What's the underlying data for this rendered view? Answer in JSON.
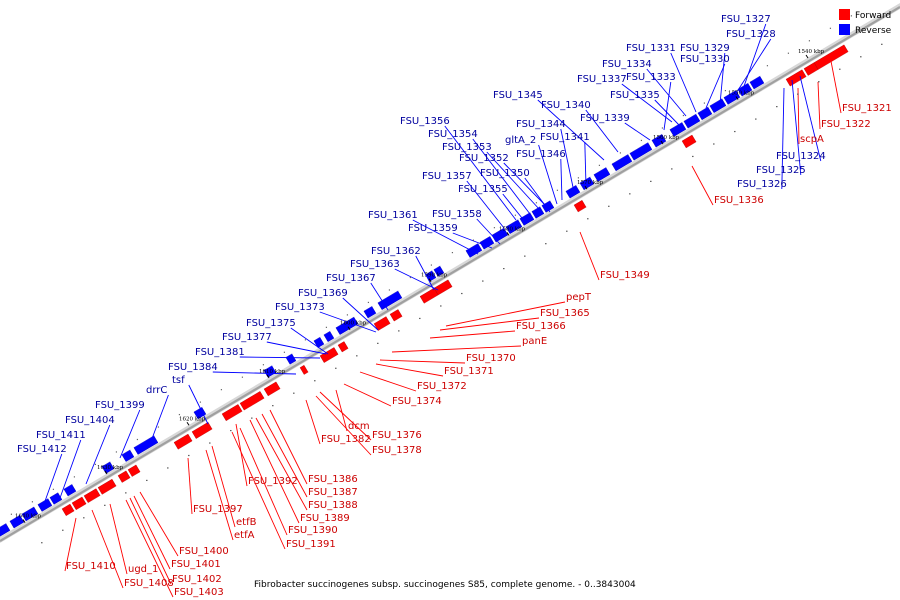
{
  "caption": "Fibrobacter succinogenes subsp. succinogenes S85, complete genome. - 0..3843004",
  "legend": [
    {
      "label": "Forward",
      "color": "#ff0000"
    },
    {
      "label": "Reverse",
      "color": "#0000ff"
    }
  ],
  "colors": {
    "forward": "#ff0000",
    "reverse": "#0000ff",
    "forward_label": "#cc0000",
    "reverse_label": "#00009e",
    "backbone": "#a0a0a0"
  },
  "ticks": [
    "1540 kbp",
    "1550 kbp",
    "1560 kbp",
    "1570 kbp",
    "1580 kbp",
    "1590 kbp",
    "1600 kbp",
    "1610 kbp",
    "1620 kbp",
    "1630 kbp",
    "1640 kbp"
  ],
  "reverse_genes": [
    "FSU_1327",
    "FSU_1328",
    "FSU_1329",
    "FSU_1331",
    "FSU_1330",
    "FSU_1334",
    "FSU_1337",
    "FSU_1333",
    "FSU_1335",
    "FSU_1345",
    "FSU_1340",
    "FSU_1339",
    "FSU_1344",
    "FSU_1341",
    "FSU_1356",
    "FSU_1354",
    "gltA_2",
    "FSU_1353",
    "FSU_1346",
    "FSU_1352",
    "FSU_1357",
    "FSU_1350",
    "FSU_1355",
    "FSU_1361",
    "FSU_1358",
    "FSU_1359",
    "FSU_1362",
    "FSU_1363",
    "FSU_1367",
    "FSU_1369",
    "FSU_1373",
    "FSU_1375",
    "FSU_1377",
    "FSU_1381",
    "FSU_1384",
    "tsf",
    "drrC",
    "FSU_1399",
    "FSU_1404",
    "FSU_1411",
    "FSU_1412",
    "FSU_1326",
    "FSU_1325",
    "FSU_1324"
  ],
  "forward_genes": [
    "FSU_1321",
    "FSU_1322",
    "scpA",
    "FSU_1336",
    "FSU_1349",
    "pepT",
    "FSU_1365",
    "FSU_1366",
    "panE",
    "FSU_1370",
    "FSU_1371",
    "FSU_1372",
    "FSU_1374",
    "dcm",
    "FSU_1376",
    "FSU_1382",
    "FSU_1378",
    "FSU_1386",
    "FSU_1387",
    "FSU_1388",
    "FSU_1392",
    "FSU_1389",
    "FSU_1390",
    "FSU_1391",
    "etfB",
    "etfA",
    "FSU_1397",
    "FSU_1400",
    "FSU_1401",
    "FSU_1402",
    "FSU_1403",
    "FSU_1410",
    "ugd_1",
    "FSU_1408"
  ]
}
